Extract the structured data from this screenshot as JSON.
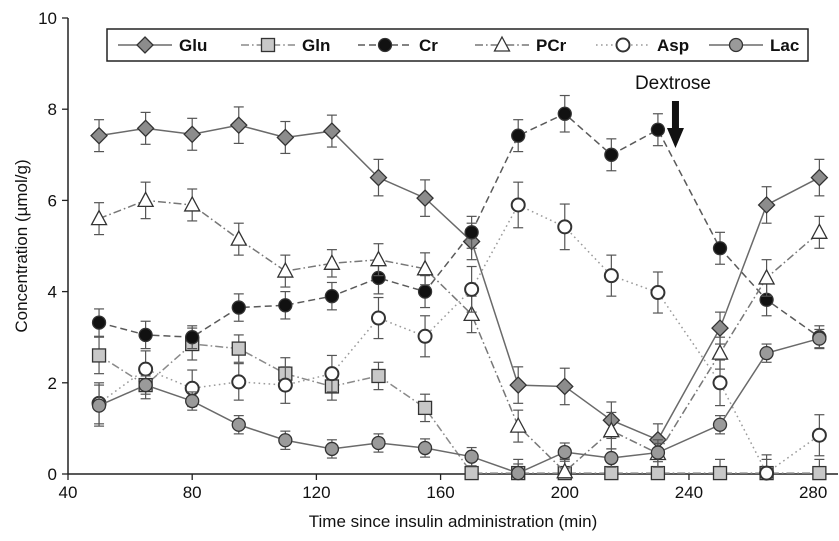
{
  "chart_data": {
    "type": "line",
    "xlabel": "Time since insulin administration (min)",
    "ylabel": "Concentration (µmol/g)",
    "xlim": [
      40,
      288
    ],
    "ylim": [
      0,
      10
    ],
    "x_ticks": [
      40,
      80,
      120,
      160,
      200,
      240,
      280
    ],
    "y_ticks": [
      0,
      2,
      4,
      6,
      8,
      10
    ],
    "legend_position": "top",
    "annotations": [
      {
        "text": "Dextrose",
        "x": 240,
        "arrow": "down"
      }
    ],
    "x": [
      50,
      65,
      80,
      95,
      110,
      125,
      140,
      155,
      170,
      185,
      200,
      215,
      230,
      250,
      265,
      282
    ],
    "series": [
      {
        "name": "Glu",
        "marker": "diamond",
        "fill": "#8c8c8c",
        "dash": "solid",
        "values": [
          7.42,
          7.58,
          7.45,
          7.65,
          7.38,
          7.52,
          6.5,
          6.05,
          5.1,
          1.95,
          1.92,
          1.18,
          0.75,
          3.2,
          5.9,
          6.5
        ],
        "errors": [
          0.35,
          0.35,
          0.35,
          0.4,
          0.35,
          0.35,
          0.4,
          0.4,
          0.4,
          0.4,
          0.4,
          0.4,
          0.35,
          0.35,
          0.4,
          0.4
        ]
      },
      {
        "name": "Gln",
        "marker": "square",
        "fill": "#c8c8c8",
        "dash": "dashdot",
        "values": [
          2.6,
          1.95,
          2.85,
          2.75,
          2.2,
          1.92,
          2.15,
          1.45,
          0.02,
          0.02,
          0.02,
          0.02,
          0.02,
          0.02,
          0.02,
          0.02
        ],
        "errors": [
          0.4,
          0.3,
          0.35,
          0.3,
          0.35,
          0.3,
          0.3,
          0.3,
          0.3,
          0.3,
          0.3,
          0.3,
          0.3,
          0.3,
          0.3,
          0.3
        ]
      },
      {
        "name": "Cr",
        "marker": "circle",
        "fill": "#111111",
        "dash": "dashed",
        "values": [
          3.32,
          3.05,
          3.0,
          3.65,
          3.7,
          3.9,
          4.3,
          4.0,
          5.3,
          7.42,
          7.9,
          7.0,
          7.55,
          4.95,
          3.82,
          3.0
        ],
        "errors": [
          0.3,
          0.3,
          0.25,
          0.3,
          0.3,
          0.3,
          0.35,
          0.35,
          0.35,
          0.35,
          0.4,
          0.35,
          0.35,
          0.35,
          0.35,
          0.25
        ]
      },
      {
        "name": "PCr",
        "marker": "triangle",
        "fill": "#ffffff",
        "dash": "dashdot",
        "values": [
          5.6,
          6.0,
          5.9,
          5.15,
          4.45,
          4.62,
          4.7,
          4.5,
          3.5,
          1.05,
          0.05,
          0.95,
          0.45,
          2.65,
          4.3,
          5.3
        ],
        "errors": [
          0.35,
          0.4,
          0.35,
          0.35,
          0.35,
          0.3,
          0.35,
          0.35,
          0.4,
          0.35,
          0.3,
          0.4,
          0.3,
          0.35,
          0.4,
          0.35
        ]
      },
      {
        "name": "Asp",
        "marker": "circle",
        "fill": "#ffffff",
        "dash": "dotted",
        "values": [
          1.55,
          2.3,
          1.88,
          2.02,
          1.95,
          2.2,
          3.42,
          3.02,
          4.05,
          5.9,
          5.42,
          4.35,
          3.98,
          2.0,
          0.02,
          0.85
        ],
        "errors": [
          0.45,
          0.4,
          0.4,
          0.4,
          0.4,
          0.4,
          0.45,
          0.45,
          0.5,
          0.5,
          0.5,
          0.45,
          0.45,
          0.5,
          0.4,
          0.45
        ]
      },
      {
        "name": "Lac",
        "marker": "circle",
        "fill": "#9a9a9a",
        "dash": "solid",
        "values": [
          1.5,
          1.95,
          1.6,
          1.08,
          0.74,
          0.55,
          0.68,
          0.57,
          0.38,
          0.02,
          0.48,
          0.35,
          0.47,
          1.08,
          2.65,
          2.97
        ],
        "errors": [
          0.45,
          0.2,
          0.2,
          0.2,
          0.2,
          0.2,
          0.2,
          0.2,
          0.2,
          0.2,
          0.2,
          0.2,
          0.2,
          0.2,
          0.2,
          0.2
        ]
      }
    ]
  }
}
